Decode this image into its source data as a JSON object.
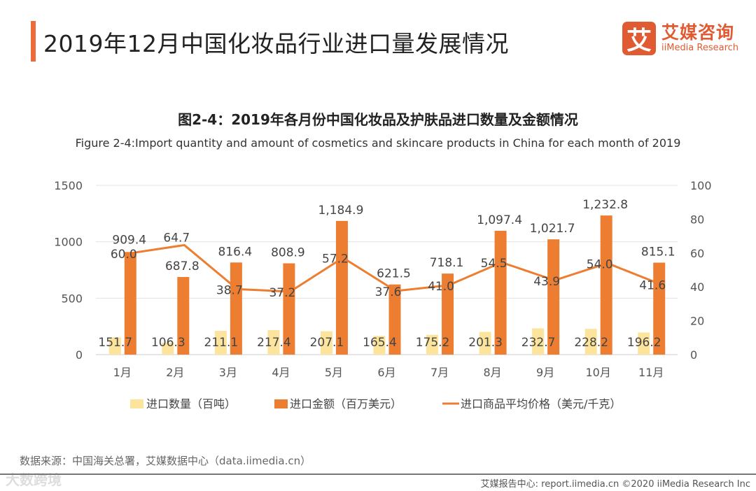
{
  "header": {
    "title": "2019年12月中国化妆品行业进口量发展情况",
    "logo_cn": "艾媒咨询",
    "logo_en": "iiMedia Research",
    "logo_mark": "艾"
  },
  "chart_data": {
    "type": "bar",
    "title": "图2-4：2019年各月份中国化妆品及护肤品进口数量及金额情况",
    "subtitle": "Figure 2-4:Import quantity and amount of cosmetics and skincare products in China for each month of 2019",
    "categories": [
      "1月",
      "2月",
      "3月",
      "4月",
      "5月",
      "6月",
      "7月",
      "8月",
      "9月",
      "10月",
      "11月"
    ],
    "left_axis": {
      "ylim": [
        0,
        1500
      ],
      "ticks": [
        "0",
        "500",
        "1000",
        "1500"
      ]
    },
    "right_axis": {
      "ylim": [
        0,
        100
      ],
      "ticks": [
        "0",
        "20",
        "40",
        "60",
        "80",
        "100"
      ]
    },
    "grid": true,
    "legend_position": "bottom",
    "series": [
      {
        "name": "进口数量（百吨）",
        "type": "bar",
        "axis": "left",
        "color": "#FCE49C",
        "values": [
          151.7,
          106.3,
          211.1,
          217.4,
          207.1,
          165.4,
          175.2,
          201.3,
          232.7,
          228.2,
          196.2
        ],
        "labels": [
          "151.7",
          "106.3",
          "211.1",
          "217.4",
          "207.1",
          "165.4",
          "175.2",
          "201.3",
          "232.7",
          "228.2",
          "196.2"
        ]
      },
      {
        "name": "进口金额（百万美元）",
        "type": "bar",
        "axis": "left",
        "color": "#ED7D31",
        "values": [
          909.4,
          687.8,
          816.4,
          808.9,
          1184.9,
          621.5,
          718.1,
          1097.4,
          1021.7,
          1232.8,
          815.1
        ],
        "labels": [
          "909.4",
          "687.8",
          "816.4",
          "808.9",
          "1,184.9",
          "621.5",
          "718.1",
          "1,097.4",
          "1,021.7",
          "1,232.8",
          "815.1"
        ]
      },
      {
        "name": "进口商品平均价格（美元/千克）",
        "type": "line",
        "axis": "right",
        "color": "#ED7D31",
        "values": [
          60.0,
          64.7,
          38.7,
          37.2,
          57.2,
          37.6,
          41.0,
          54.5,
          43.9,
          54.0,
          41.6
        ],
        "labels": [
          "60.0",
          "64.7",
          "38.7",
          "37.2",
          "57.2",
          "37.6",
          "41.0",
          "54.5",
          "43.9",
          "54.0",
          "41.6"
        ]
      }
    ]
  },
  "source": "数据来源：中国海关总署，艾媒数据中心（data.iimedia.cn）",
  "watermark": "大数跨境",
  "footer": "艾媒报告中心: report.iimedia.cn  ©2020  iiMedia Research Inc"
}
